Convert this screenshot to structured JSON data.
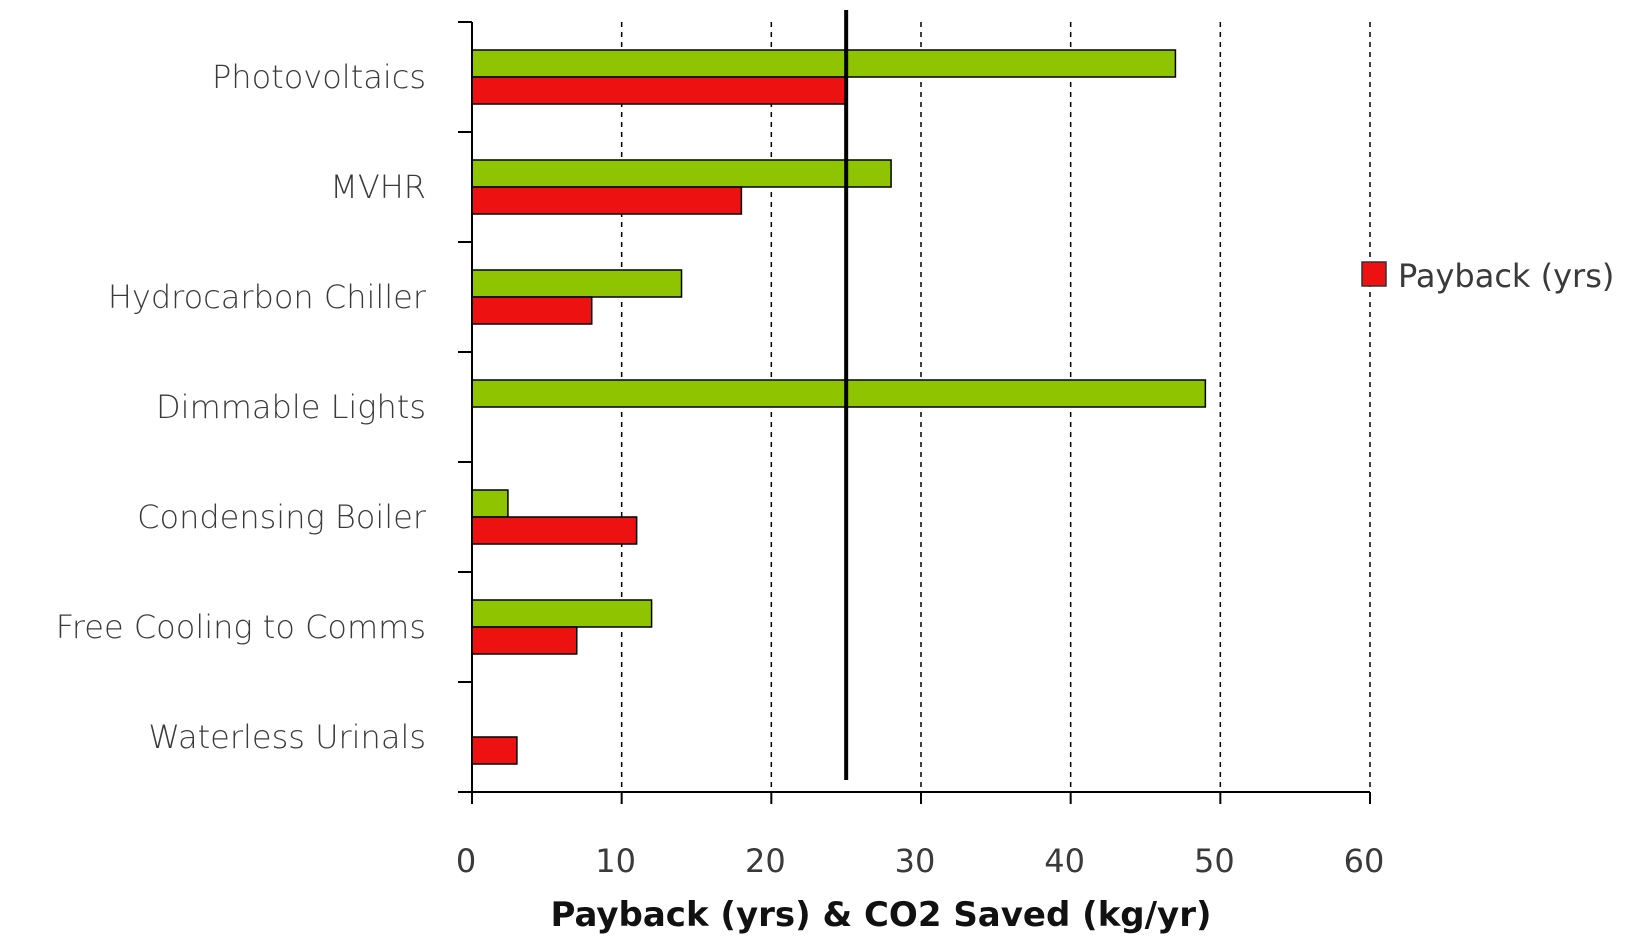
{
  "chart_data": {
    "type": "bar",
    "orientation": "horizontal",
    "categories": [
      "Photovoltaics",
      "MVHR",
      "Hydrocarbon Chiller",
      "Dimmable Lights",
      "Condensing Boiler",
      "Free Cooling to Comms",
      "Waterless Urinals"
    ],
    "series": [
      {
        "key": "co2",
        "color": "#8fc400",
        "values": [
          47,
          28,
          14,
          49,
          2.4,
          12,
          0
        ]
      },
      {
        "key": "payback",
        "name": "Payback (yrs)",
        "color": "#ee1111",
        "values": [
          25,
          18,
          8,
          0,
          11,
          7,
          3
        ]
      }
    ],
    "xlabel": "Payback (yrs) & CO2 Saved (kg/yr)",
    "xlim": [
      0,
      60
    ],
    "xticks": [
      "0",
      "10",
      "20",
      "30",
      "40",
      "50",
      "60"
    ],
    "grid": "vertical-dashed",
    "reference_line": 25,
    "legend": {
      "placement": "right",
      "entries": [
        "Payback (yrs)"
      ]
    }
  }
}
